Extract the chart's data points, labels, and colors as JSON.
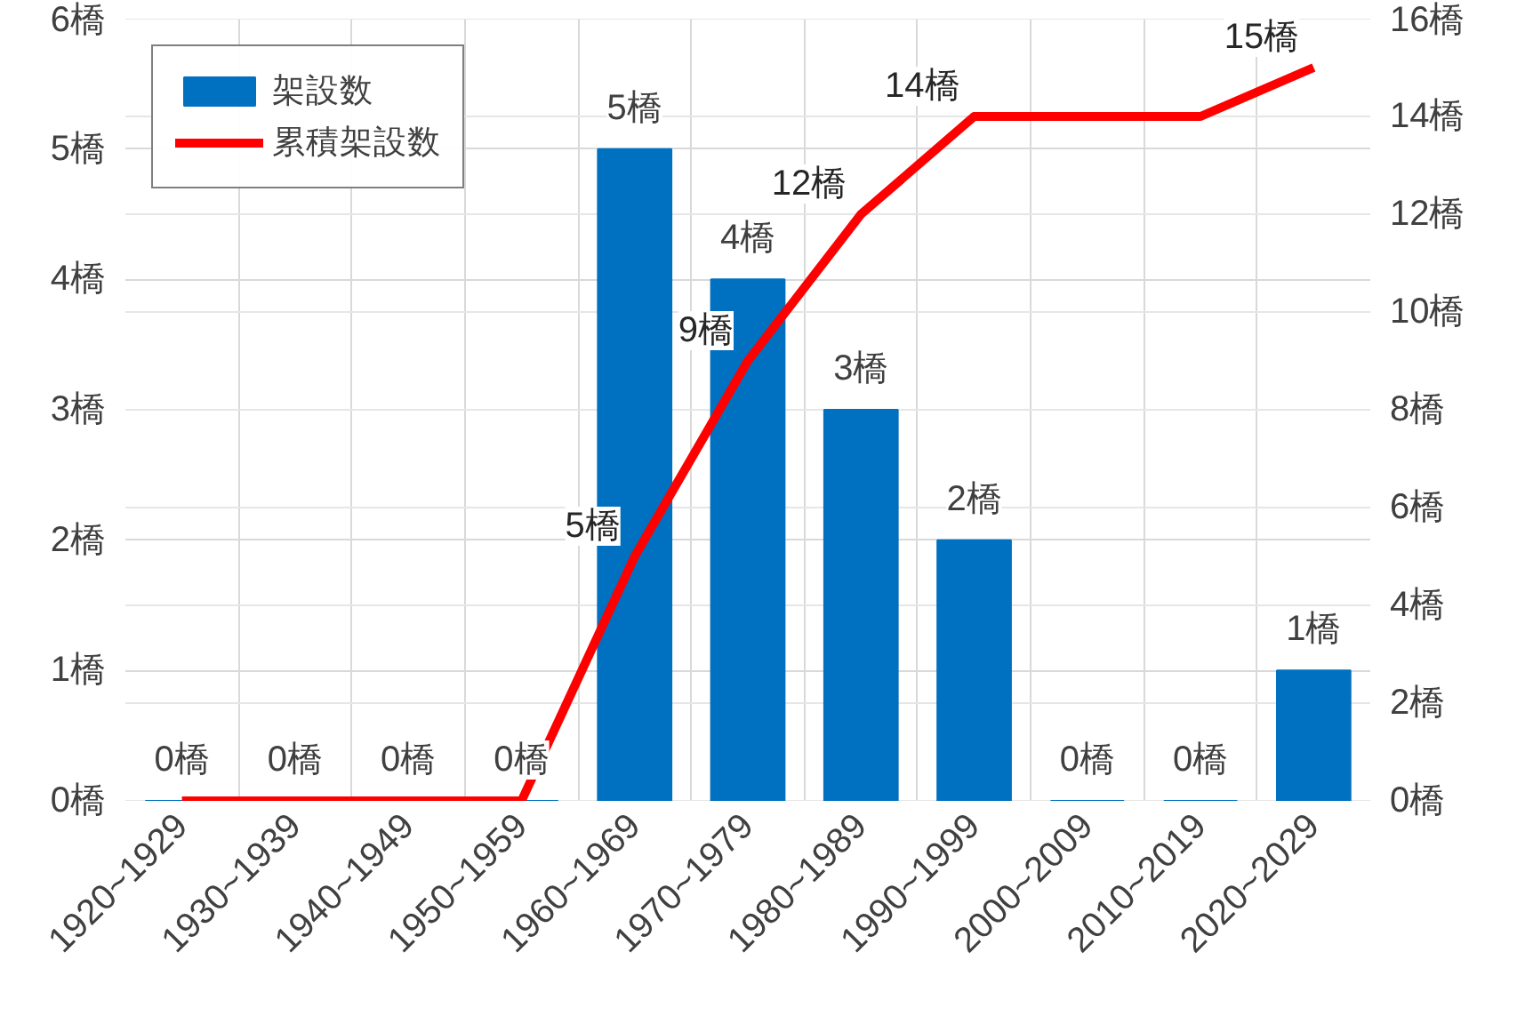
{
  "chart_data": {
    "type": "bar",
    "categories": [
      "1920~1929",
      "1930~1939",
      "1940~1949",
      "1950~1959",
      "1960~1969",
      "1970~1979",
      "1980~1989",
      "1990~1999",
      "2000~2009",
      "2010~2019",
      "2020~2029"
    ],
    "series": [
      {
        "name": "架設数",
        "color": "#0070c0",
        "values": [
          0,
          0,
          0,
          0,
          5,
          4,
          3,
          2,
          0,
          0,
          1
        ],
        "value_labels": [
          "0橋",
          "0橋",
          "0橋",
          "0橋",
          "5橋",
          "4橋",
          "3橋",
          "2橋",
          "0橋",
          "0橋",
          "1橋"
        ]
      },
      {
        "name": "累積架設数",
        "type": "line",
        "axis": "y2",
        "color": "#ff0000",
        "values": [
          0,
          0,
          0,
          0,
          5,
          9,
          12,
          14,
          14,
          14,
          15
        ],
        "value_labels": [
          null,
          null,
          null,
          null,
          "5橋",
          "9橋",
          "12橋",
          "14橋",
          null,
          null,
          "15橋"
        ]
      }
    ],
    "ylim": [
      0,
      6
    ],
    "yticks": [
      {
        "value": 0,
        "label": "0橋"
      },
      {
        "value": 1,
        "label": "1橋"
      },
      {
        "value": 2,
        "label": "2橋"
      },
      {
        "value": 3,
        "label": "3橋"
      },
      {
        "value": 4,
        "label": "4橋"
      },
      {
        "value": 5,
        "label": "5橋"
      },
      {
        "value": 6,
        "label": "6橋"
      }
    ],
    "y2lim": [
      0,
      16
    ],
    "y2ticks": [
      {
        "value": 0,
        "label": "0橋"
      },
      {
        "value": 2,
        "label": "2橋"
      },
      {
        "value": 4,
        "label": "4橋"
      },
      {
        "value": 6,
        "label": "6橋"
      },
      {
        "value": 8,
        "label": "8橋"
      },
      {
        "value": 10,
        "label": "10橋"
      },
      {
        "value": 12,
        "label": "12橋"
      },
      {
        "value": 14,
        "label": "14橋"
      },
      {
        "value": 16,
        "label": "16橋"
      }
    ],
    "grid": true,
    "legend": "top left",
    "line_style": "solid",
    "marker": "none"
  }
}
